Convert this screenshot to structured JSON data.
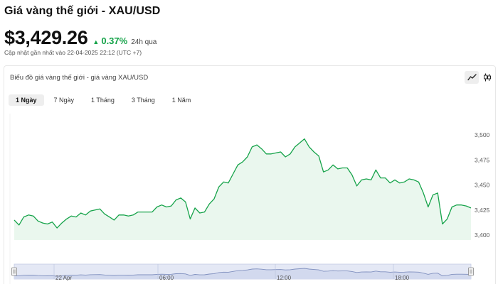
{
  "header": {
    "title": "Giá vàng thế giới - XAU/USD",
    "price": "$3,429.26",
    "change": "0.37%",
    "change_period": "24h qua",
    "updated": "Cập nhật gần nhất vào 22-04-2025 22:12 (UTC +7)",
    "accent_color": "#16a34a"
  },
  "chart_card": {
    "title": "Biểu đồ giá vàng thế giới - giá vàng XAU/USD",
    "tools": [
      {
        "name": "line-chart-icon",
        "active": true
      },
      {
        "name": "candlestick-icon",
        "active": false
      }
    ],
    "ranges": [
      {
        "label": "1 Ngày",
        "active": true
      },
      {
        "label": "7 Ngày",
        "active": false
      },
      {
        "label": "1 Tháng",
        "active": false
      },
      {
        "label": "3 Tháng",
        "active": false
      },
      {
        "label": "1 Năm",
        "active": false
      }
    ]
  },
  "chart_data": {
    "type": "area",
    "y_ticks": [
      "3,500",
      "3,475",
      "3,450",
      "3,425",
      "3,400"
    ],
    "ylim": [
      3400,
      3500
    ],
    "navigator_labels": [
      "22 Apr",
      "06:00",
      "12:00",
      "18:00"
    ],
    "line_color": "#16a34a",
    "fill_color": "#eaf7ee",
    "grid": false,
    "values": [
      3415,
      3410,
      3418,
      3420,
      3419,
      3414,
      3412,
      3411,
      3413,
      3407,
      3412,
      3416,
      3419,
      3418,
      3422,
      3420,
      3424,
      3425,
      3426,
      3421,
      3418,
      3415,
      3420,
      3420,
      3419,
      3420,
      3423,
      3423,
      3423,
      3423,
      3428,
      3430,
      3428,
      3429,
      3435,
      3437,
      3433,
      3416,
      3427,
      3422,
      3423,
      3431,
      3436,
      3448,
      3453,
      3452,
      3461,
      3470,
      3473,
      3478,
      3488,
      3490,
      3486,
      3481,
      3481,
      3482,
      3483,
      3478,
      3481,
      3488,
      3492,
      3496,
      3488,
      3483,
      3479,
      3463,
      3465,
      3470,
      3466,
      3467,
      3467,
      3460,
      3449,
      3455,
      3456,
      3455,
      3465,
      3457,
      3457,
      3452,
      3455,
      3452,
      3453,
      3456,
      3455,
      3453,
      3442,
      3428,
      3440,
      3442,
      3411,
      3416,
      3428,
      3430,
      3430,
      3429,
      3427
    ]
  }
}
